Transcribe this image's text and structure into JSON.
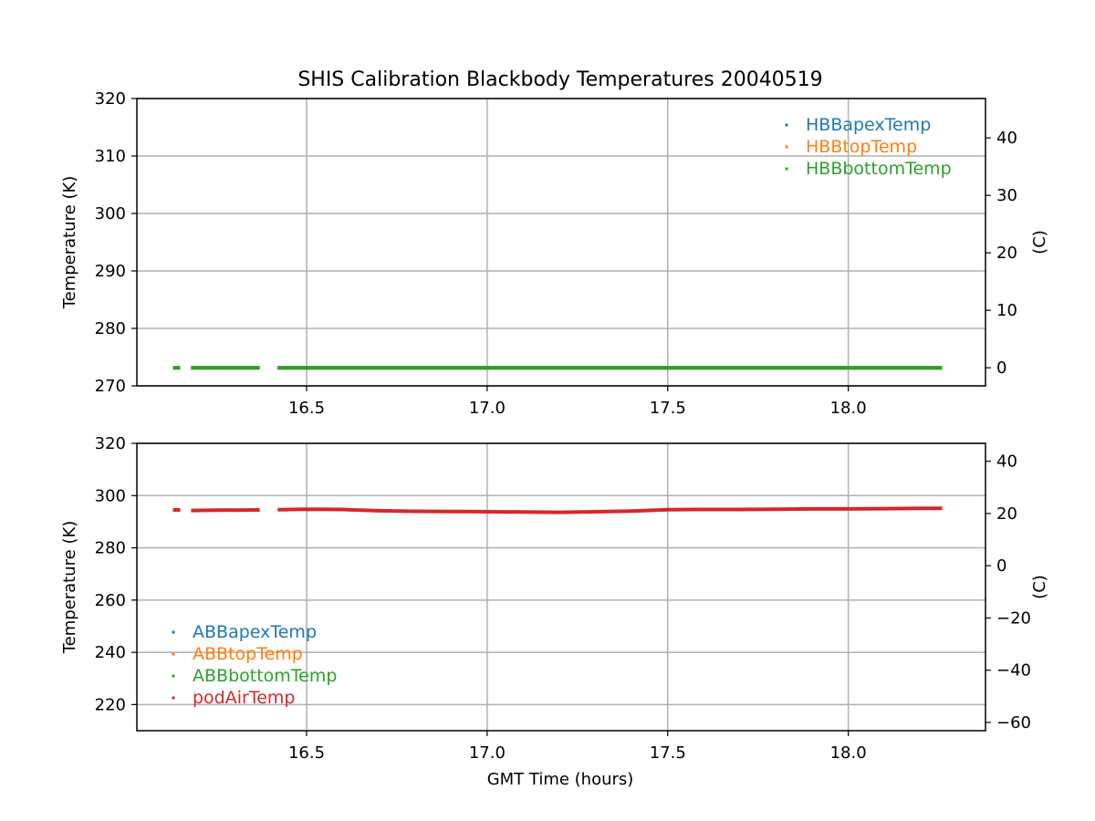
{
  "title": "SHIS Calibration Blackbody Temperatures 20040519",
  "xlabel": "GMT Time (hours)",
  "colors": {
    "blue": "#1f77b4",
    "orange": "#ff7f0e",
    "green": "#2ca02c",
    "red": "#d62728",
    "grid": "#b0b0b0"
  },
  "chart_data": [
    {
      "type": "scatter",
      "xlim": [
        16.03,
        18.38
      ],
      "ylim": [
        270,
        320
      ],
      "ylabel": "Temperature (K)",
      "y2label": "(C)",
      "y2lim": [
        -3.15,
        46.85
      ],
      "xticks": [
        16.5,
        17.0,
        17.5,
        18.0
      ],
      "xtick_labels": [
        "16.5",
        "17.0",
        "17.5",
        "18.0"
      ],
      "yticks": [
        270,
        280,
        290,
        300,
        310,
        320
      ],
      "y2ticks": [
        0,
        10,
        20,
        30,
        40
      ],
      "y2tick_labels": [
        "0",
        "10",
        "20",
        "30",
        "40"
      ],
      "grid": true,
      "legend_loc": "upper right",
      "series": [
        {
          "name": "HBBapexTemp",
          "color_key": "blue",
          "segments": [
            [
              [
                16.13,
                273.15
              ],
              [
                16.15,
                273.15
              ]
            ],
            [
              [
                16.18,
                273.15
              ],
              [
                16.37,
                273.15
              ]
            ],
            [
              [
                16.42,
                273.15
              ],
              [
                18.26,
                273.15
              ]
            ]
          ]
        },
        {
          "name": "HBBtopTemp",
          "color_key": "orange",
          "segments": [
            [
              [
                16.13,
                273.15
              ],
              [
                16.15,
                273.15
              ]
            ],
            [
              [
                16.18,
                273.15
              ],
              [
                16.37,
                273.15
              ]
            ],
            [
              [
                16.42,
                273.15
              ],
              [
                18.26,
                273.15
              ]
            ]
          ]
        },
        {
          "name": "HBBbottomTemp",
          "color_key": "green",
          "segments": [
            [
              [
                16.13,
                273.15
              ],
              [
                16.15,
                273.15
              ]
            ],
            [
              [
                16.18,
                273.15
              ],
              [
                16.37,
                273.15
              ]
            ],
            [
              [
                16.42,
                273.15
              ],
              [
                18.26,
                273.15
              ]
            ]
          ]
        }
      ]
    },
    {
      "type": "scatter",
      "xlim": [
        16.03,
        18.38
      ],
      "ylim": [
        210,
        320
      ],
      "ylabel": "Temperature (K)",
      "y2label": "(C)",
      "y2lim": [
        -63.15,
        46.85
      ],
      "xticks": [
        16.5,
        17.0,
        17.5,
        18.0
      ],
      "xtick_labels": [
        "16.5",
        "17.0",
        "17.5",
        "18.0"
      ],
      "yticks": [
        220,
        240,
        260,
        280,
        300,
        320
      ],
      "y2ticks": [
        -60,
        -40,
        -20,
        0,
        20,
        40
      ],
      "y2tick_labels": [
        "−60",
        "−40",
        "−20",
        "0",
        "20",
        "40"
      ],
      "grid": true,
      "legend_loc": "lower left",
      "series": [
        {
          "name": "ABBapexTemp",
          "color_key": "blue",
          "segments": []
        },
        {
          "name": "ABBtopTemp",
          "color_key": "orange",
          "segments": []
        },
        {
          "name": "ABBbottomTemp",
          "color_key": "green",
          "segments": []
        },
        {
          "name": "podAirTemp",
          "color_key": "red",
          "segments": [
            [
              [
                16.13,
                294.5
              ],
              [
                16.15,
                294.5
              ]
            ],
            [
              [
                16.18,
                294.3
              ],
              [
                16.25,
                294.4
              ],
              [
                16.37,
                294.5
              ]
            ],
            [
              [
                16.42,
                294.6
              ],
              [
                16.5,
                294.8
              ],
              [
                16.6,
                294.7
              ],
              [
                16.7,
                294.2
              ],
              [
                16.8,
                294.0
              ],
              [
                16.9,
                293.9
              ],
              [
                17.0,
                293.8
              ],
              [
                17.1,
                293.7
              ],
              [
                17.2,
                293.6
              ],
              [
                17.3,
                293.8
              ],
              [
                17.4,
                294.1
              ],
              [
                17.5,
                294.6
              ],
              [
                17.6,
                294.7
              ],
              [
                17.7,
                294.7
              ],
              [
                17.8,
                294.8
              ],
              [
                17.9,
                294.9
              ],
              [
                18.0,
                294.9
              ],
              [
                18.1,
                295.0
              ],
              [
                18.2,
                295.1
              ],
              [
                18.26,
                295.1
              ]
            ]
          ]
        }
      ]
    }
  ]
}
